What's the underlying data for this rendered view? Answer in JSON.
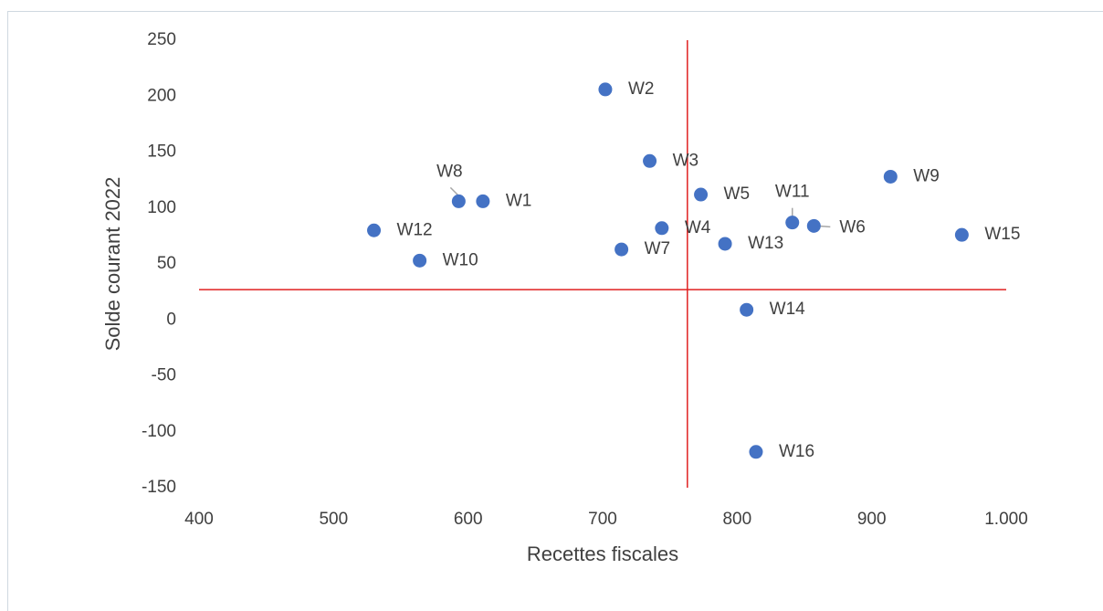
{
  "chart_data": {
    "type": "scatter",
    "xlabel": "Recettes fiscales",
    "ylabel": "Solde courant 2022",
    "labels": [
      "W1",
      "W2",
      "W3",
      "W4",
      "W5",
      "W6",
      "W7",
      "W8",
      "W9",
      "W10",
      "W11",
      "W12",
      "W13",
      "W14",
      "W15",
      "W16"
    ],
    "x": [
      611,
      702,
      735,
      744,
      773,
      857,
      714,
      593,
      914,
      564,
      841,
      530,
      791,
      807,
      967,
      814
    ],
    "y": [
      106,
      206,
      142,
      82,
      112,
      84,
      63,
      106,
      128,
      53,
      87,
      80,
      68,
      9,
      76,
      -118
    ],
    "color": "#4472c4",
    "xlim": [
      400,
      1000
    ],
    "xticks": [
      400,
      500,
      600,
      700,
      800,
      900,
      {
        "value": 1000,
        "label": "1.000"
      }
    ],
    "ylim": [
      -150,
      250
    ],
    "yticks": [
      -150,
      -100,
      -50,
      0,
      50,
      100,
      150,
      200,
      250
    ],
    "grid": false,
    "reference_lines": {
      "x": 763,
      "y": 27,
      "color": "#e02020"
    }
  }
}
